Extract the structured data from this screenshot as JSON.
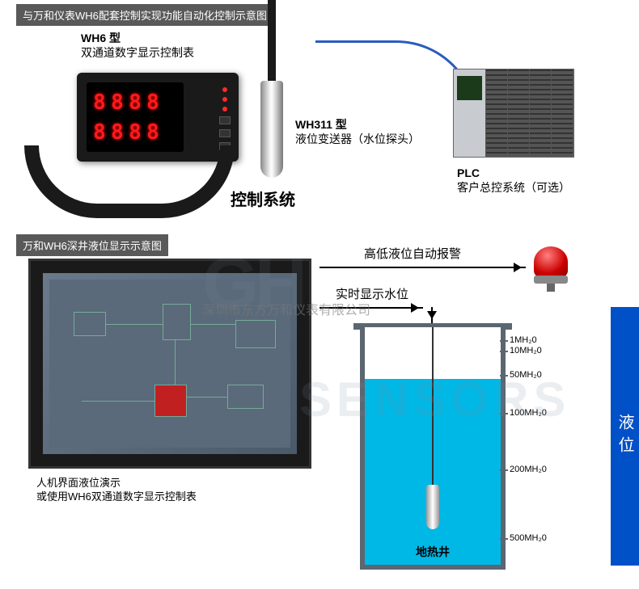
{
  "headers": {
    "top": "与万和仪表WH6配套控制实现功能自动化控制示意图",
    "mid": "万和WH6深井液位显示示意图"
  },
  "wh6": {
    "model": "WH6 型",
    "desc": "双通道数字显示控制表",
    "digits_top": "8.8.8.8",
    "digits_bot": "8.8.8.8"
  },
  "wh311": {
    "model": "WH311 型",
    "desc": "液位变送器（水位探头）"
  },
  "center_label": "控制系统",
  "plc": {
    "title": "PLC",
    "desc": "客户总控系统（可选）"
  },
  "alarm_label": "高低液位自动报警",
  "realtime_label": "实时显示水位",
  "hmi": {
    "line1": "人机界面液位演示",
    "line2": "或使用WH6双通道数字显示控制表"
  },
  "well": {
    "label": "地热井",
    "scale": [
      {
        "v": "1MH₂0",
        "t": 5
      },
      {
        "v": "10MH₂0",
        "t": 18
      },
      {
        "v": "50MH₂0",
        "t": 48
      },
      {
        "v": "100MH₂0",
        "t": 95
      },
      {
        "v": "200MH₂0",
        "t": 165
      },
      {
        "v": "500MH₂0",
        "t": 250
      }
    ]
  },
  "sidebar": "液位",
  "watermark": "深圳市东方万和仪表有限公司",
  "colors": {
    "header_bg": "#595959",
    "digit": "#ff1a1a",
    "swoosh": "#2a5cbf",
    "water": "#00b8e6",
    "well_border": "#5b6670",
    "sidebar": "#0050c8"
  }
}
